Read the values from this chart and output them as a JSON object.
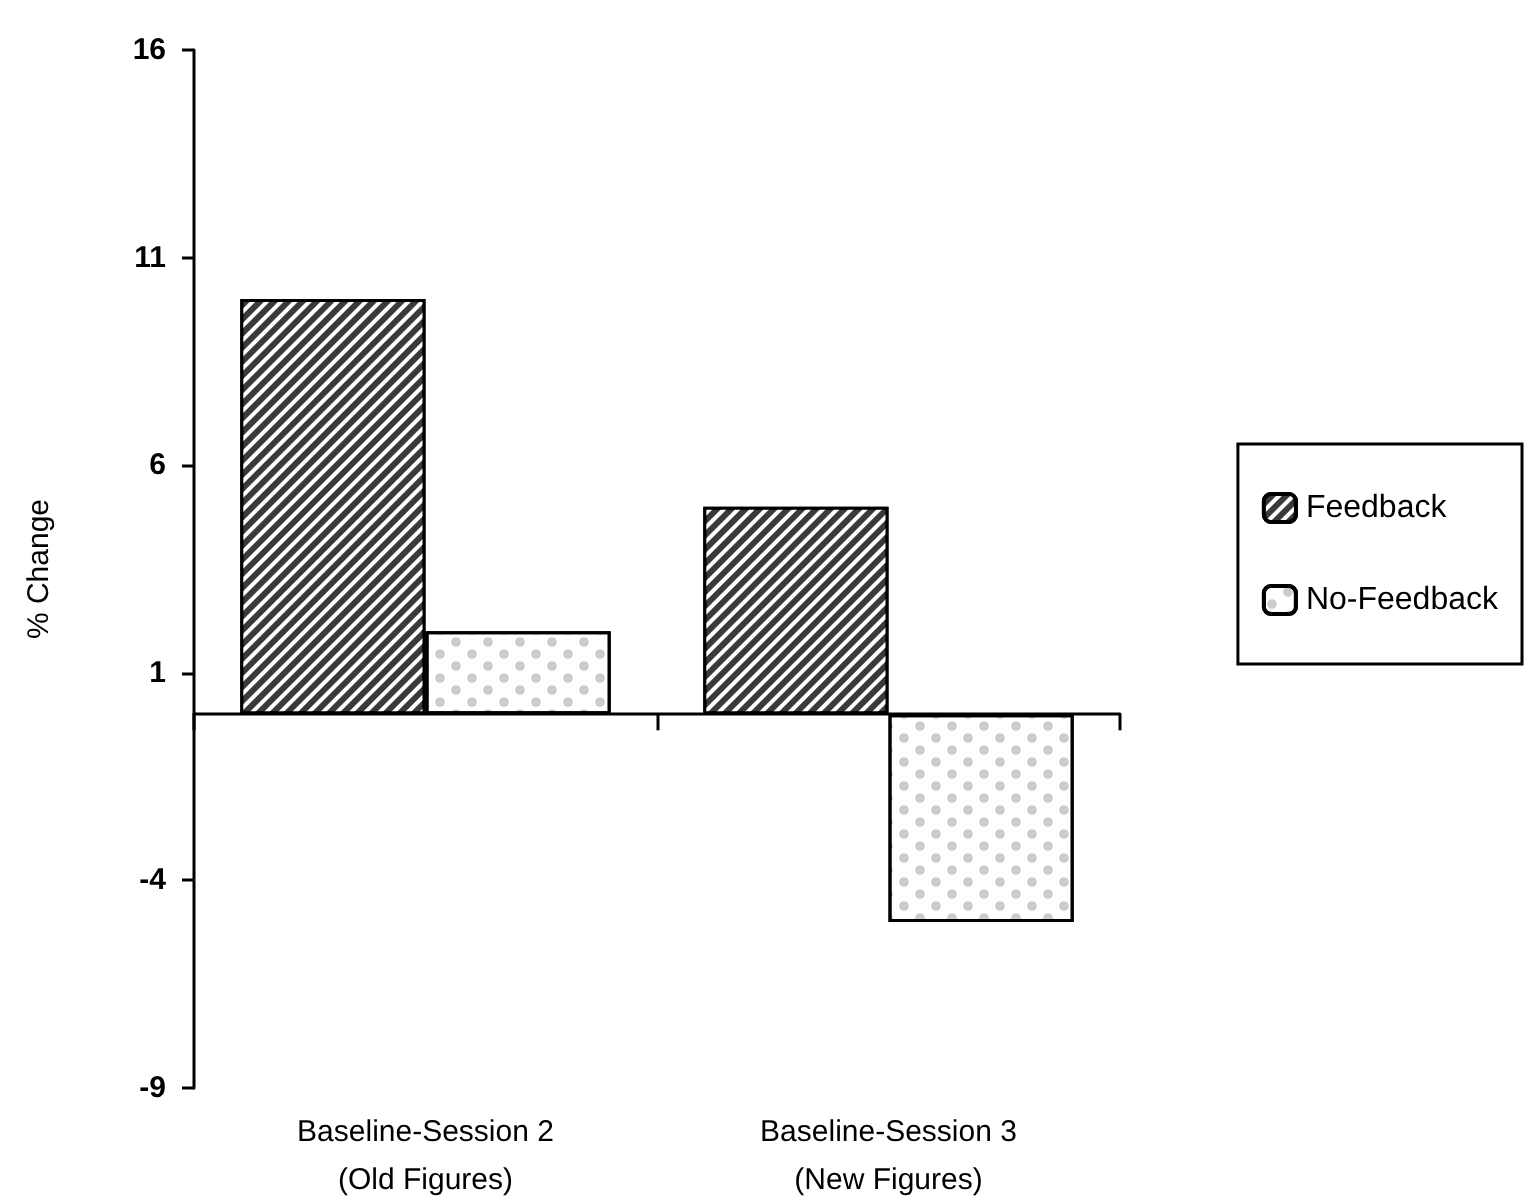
{
  "chart_data": {
    "type": "bar",
    "ylabel": "% Change",
    "categories": [
      "Baseline-Session 2\n(Old Figures)",
      "Baseline-Session 3\n(New Figures)"
    ],
    "series": [
      {
        "name": "Feedback",
        "color": "#3a3a3a",
        "values": [
          10,
          5
        ]
      },
      {
        "name": "No-Feedback",
        "color": "#ffffff",
        "values": [
          2,
          -5
        ]
      }
    ],
    "ylim": [
      -9,
      16
    ],
    "yticks": [
      -9,
      -4,
      1,
      6,
      11,
      16
    ],
    "grid": false,
    "legend": "right"
  }
}
